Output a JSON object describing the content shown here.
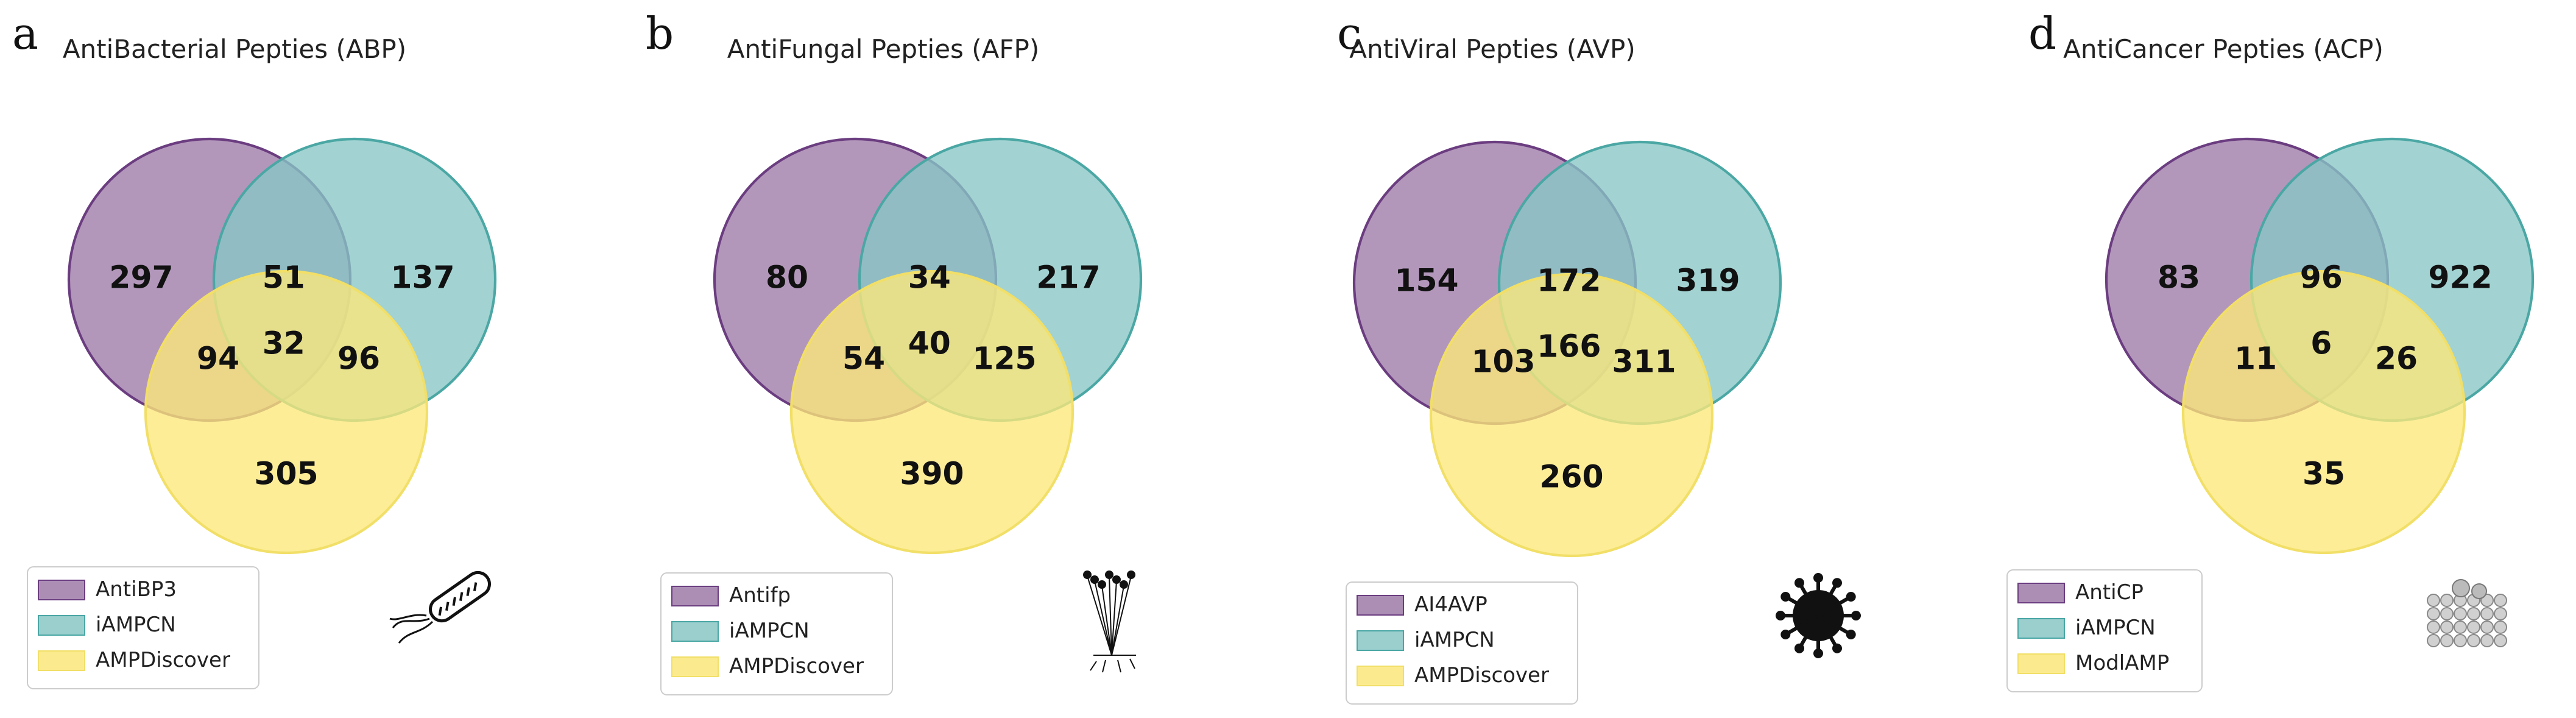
{
  "colors": {
    "setA": "#9e7aa8",
    "setB": "#88c7c5",
    "setC": "#fce87a",
    "edgeA": "#6b3d80",
    "edgeB": "#4aa7a4",
    "edgeC": "#f1df68"
  },
  "chart_data": [
    {
      "type": "venn",
      "letter": "a",
      "title": "AntiBacterial Pepties (ABP)",
      "sets": [
        "AntiBP3",
        "iAMPCN",
        "AMPDiscover"
      ],
      "regions": {
        "A": 297,
        "AB": 51,
        "B": 137,
        "ABC": 32,
        "AC": 94,
        "BC": 96,
        "C": 305
      },
      "icon": "bacterium-icon"
    },
    {
      "type": "venn",
      "letter": "b",
      "title": "AntiFungal Pepties (AFP)",
      "sets": [
        "Antifp",
        "iAMPCN",
        "AMPDiscover"
      ],
      "regions": {
        "A": 80,
        "AB": 34,
        "B": 217,
        "ABC": 40,
        "AC": 54,
        "BC": 125,
        "C": 390
      },
      "icon": "fungus-icon"
    },
    {
      "type": "venn",
      "letter": "c",
      "title": "AntiViral Pepties (AVP)",
      "sets": [
        "AI4AVP",
        "iAMPCN",
        "AMPDiscover"
      ],
      "regions": {
        "A": 154,
        "AB": 172,
        "B": 319,
        "ABC": 166,
        "AC": 103,
        "BC": 311,
        "C": 260
      },
      "icon": "virus-icon"
    },
    {
      "type": "venn",
      "letter": "d",
      "title": "AntiCancer Pepties (ACP)",
      "sets": [
        "AntiCP",
        "iAMPCN",
        "ModlAMP"
      ],
      "regions": {
        "A": 83,
        "AB": 96,
        "B": 922,
        "ABC": 6,
        "AC": 11,
        "BC": 26,
        "C": 35
      },
      "icon": "cancer-cells-icon"
    }
  ]
}
